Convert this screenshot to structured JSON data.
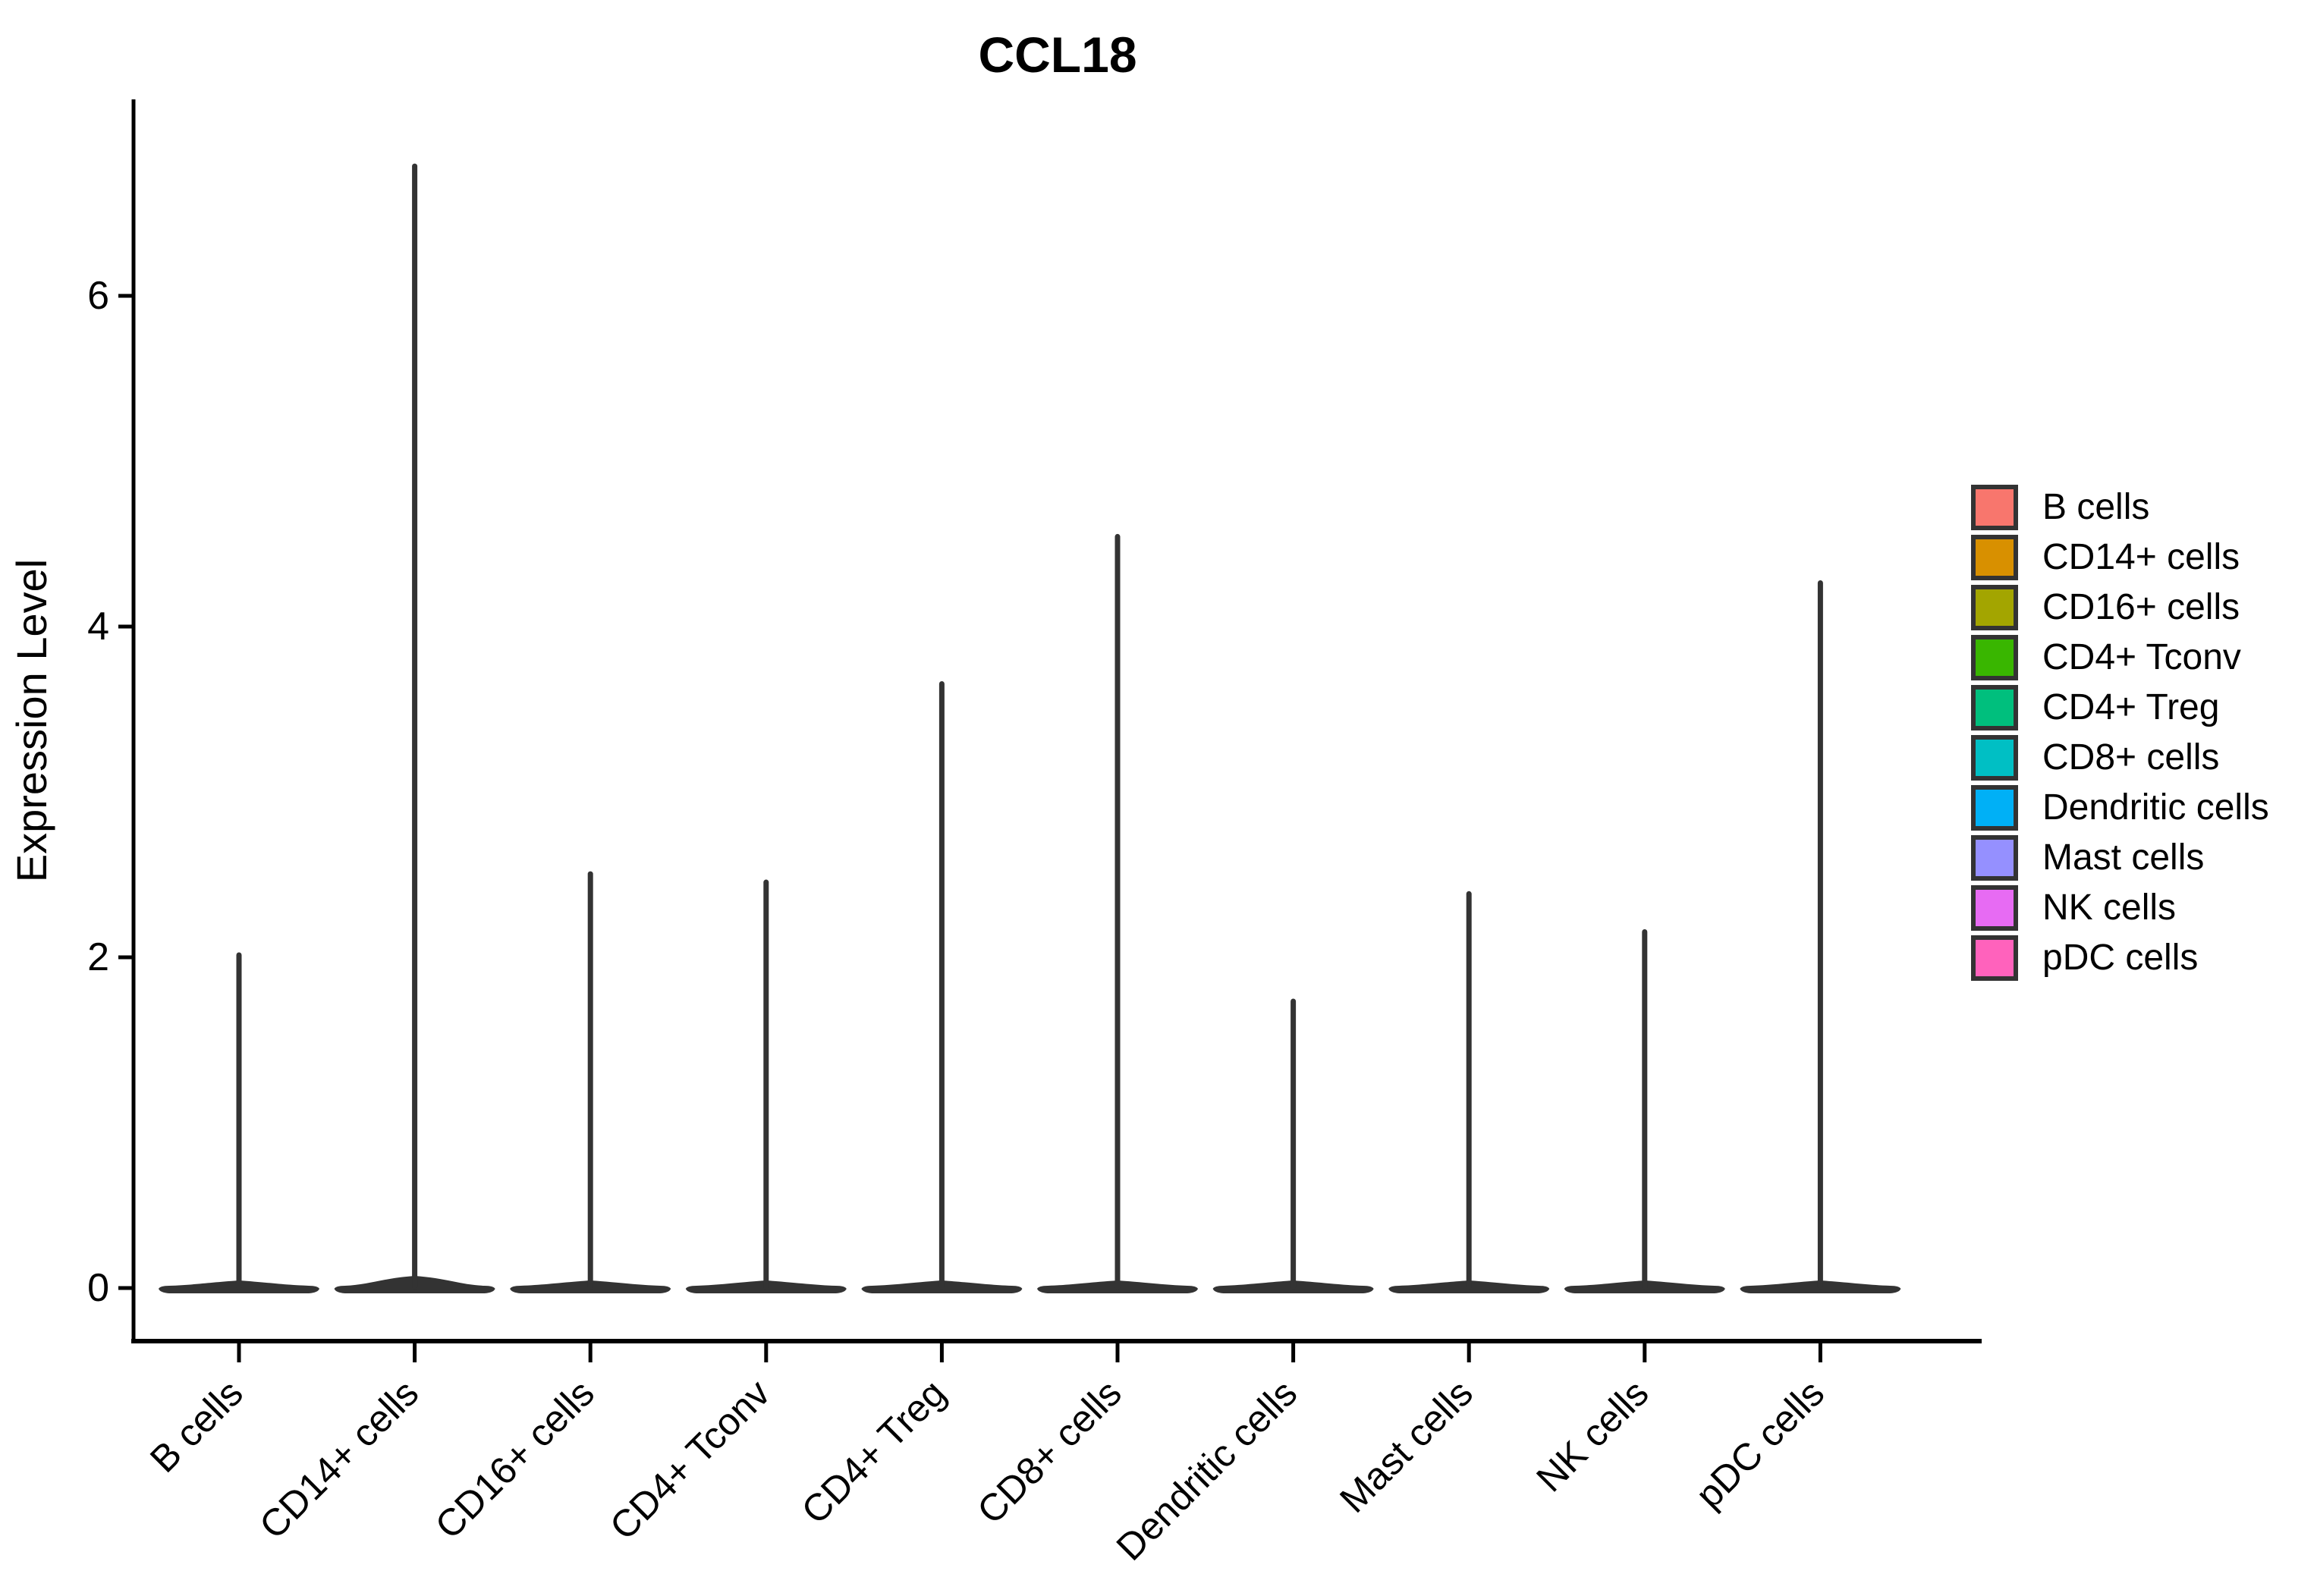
{
  "chart_data": {
    "type": "violin",
    "title": "CCL18",
    "ylabel": "Expression Level",
    "xlabel": "",
    "yticks": [
      0,
      2,
      4,
      6
    ],
    "ylim": [
      -0.32,
      7.18
    ],
    "grid": false,
    "legend_position": "right",
    "violin_color": "#333333",
    "categories": [
      "B cells",
      "CD14+ cells",
      "CD16+ cells",
      "CD4+ Tconv",
      "CD4+ Treg",
      "CD8+ cells",
      "Dendritic cells",
      "Mast cells",
      "NK cells",
      "pDC cells"
    ],
    "groups": [
      {
        "label": "B cells",
        "color": "#F8766D",
        "peak_expression": 2.03
      },
      {
        "label": "CD14+ cells",
        "color": "#D89000",
        "peak_expression": 6.8
      },
      {
        "label": "CD16+ cells",
        "color": "#A3A500",
        "peak_expression": 2.52
      },
      {
        "label": "CD4+ Tconv",
        "color": "#39B600",
        "peak_expression": 2.47
      },
      {
        "label": "CD4+ Treg",
        "color": "#00BF7D",
        "peak_expression": 3.67
      },
      {
        "label": "CD8+ cells",
        "color": "#00BFC4",
        "peak_expression": 4.56
      },
      {
        "label": "Dendritic cells",
        "color": "#00B0F6",
        "peak_expression": 1.75
      },
      {
        "label": "Mast cells",
        "color": "#9590FF",
        "peak_expression": 2.4
      },
      {
        "label": "NK cells",
        "color": "#E76BF3",
        "peak_expression": 2.17
      },
      {
        "label": "pDC cells",
        "color": "#FF62BC",
        "peak_expression": 4.28
      }
    ],
    "shape_note": "each violin collapses to a flat dark bar at expression 0 with a thin spike rising to its peak"
  }
}
